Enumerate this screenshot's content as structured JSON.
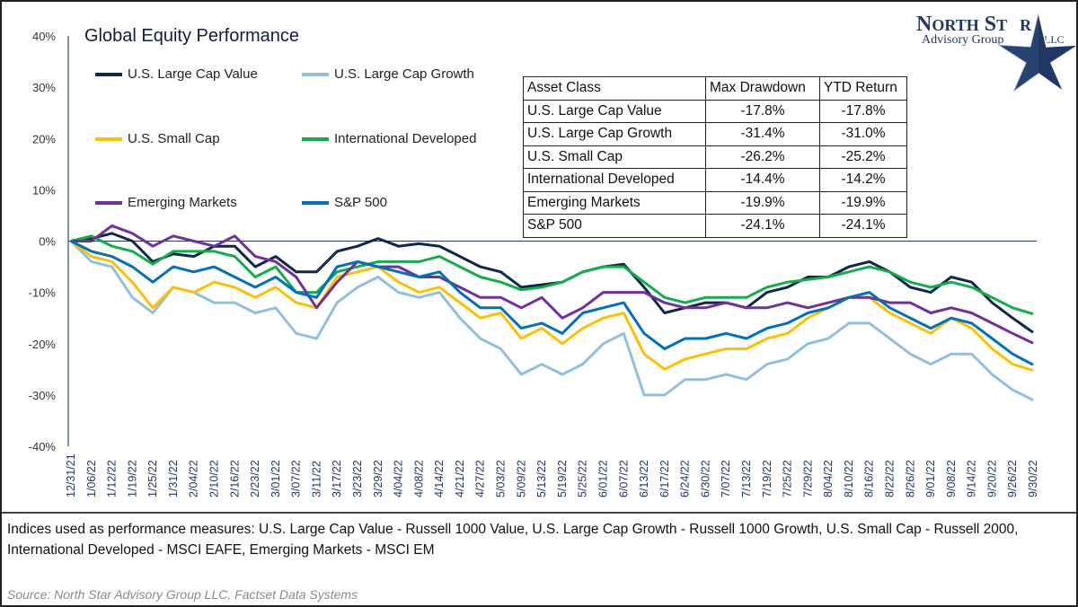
{
  "logo": {
    "line1": "NORTH STAR",
    "line2": "Advisory Group",
    "line3": "LLC"
  },
  "chart_data": {
    "type": "line",
    "title": "Global Equity Performance",
    "xlabel": "",
    "ylabel": "",
    "ylim": [
      -40,
      40
    ],
    "yticks": [
      "40%",
      "30%",
      "20%",
      "10%",
      "0%",
      "-10%",
      "-20%",
      "-30%",
      "-40%"
    ],
    "ytick_values": [
      40,
      30,
      20,
      10,
      0,
      -10,
      -20,
      -30,
      -40
    ],
    "x": [
      "12/31/21",
      "1/06/22",
      "1/12/22",
      "1/19/22",
      "1/25/22",
      "1/31/22",
      "2/04/22",
      "2/10/22",
      "2/16/22",
      "2/23/22",
      "3/01/22",
      "3/07/22",
      "3/11/22",
      "3/17/22",
      "3/23/22",
      "3/29/22",
      "4/04/22",
      "4/08/22",
      "4/14/22",
      "4/21/22",
      "4/27/22",
      "5/03/22",
      "5/09/22",
      "5/13/22",
      "5/19/22",
      "5/25/22",
      "6/01/22",
      "6/07/22",
      "6/13/22",
      "6/17/22",
      "6/24/22",
      "6/30/22",
      "7/07/22",
      "7/13/22",
      "7/19/22",
      "7/25/22",
      "7/29/22",
      "8/04/22",
      "8/10/22",
      "8/16/22",
      "8/22/22",
      "8/26/22",
      "9/01/22",
      "9/08/22",
      "9/14/22",
      "9/20/22",
      "9/26/22",
      "9/30/22"
    ],
    "grid": false,
    "legend_placement": "top-left",
    "series": [
      {
        "name": "U.S. Large Cap Value",
        "color": "#0f2748",
        "values": [
          0,
          0.5,
          1.5,
          0,
          -4,
          -2.5,
          -3,
          -1,
          -1,
          -5,
          -3,
          -6,
          -6,
          -2,
          -1,
          0.5,
          -1,
          -0.5,
          -1,
          -3,
          -5,
          -6,
          -9,
          -8.5,
          -8,
          -6,
          -5,
          -4.5,
          -9,
          -14,
          -13,
          -12,
          -12,
          -13,
          -10,
          -9,
          -7,
          -7,
          -5,
          -4,
          -6,
          -9,
          -10,
          -7,
          -8,
          -12,
          -15,
          -17.8
        ]
      },
      {
        "name": "U.S. Large Cap Growth",
        "color": "#8fc1df",
        "values": [
          0,
          -4,
          -5,
          -11,
          -14,
          -9,
          -10,
          -12,
          -12,
          -14,
          -13,
          -18,
          -19,
          -12,
          -9,
          -7,
          -10,
          -11,
          -10,
          -15,
          -19,
          -21,
          -26,
          -24,
          -26,
          -24,
          -20,
          -18,
          -30,
          -30,
          -27,
          -27,
          -26,
          -27,
          -24,
          -23,
          -20,
          -19,
          -16,
          -16,
          -19,
          -22,
          -24,
          -22,
          -22,
          -26,
          -29,
          -31
        ]
      },
      {
        "name": "U.S. Small Cap",
        "color": "#ffc000",
        "values": [
          0,
          -3,
          -4,
          -8,
          -13,
          -9,
          -10,
          -8,
          -9,
          -11,
          -9,
          -12,
          -13,
          -7,
          -6,
          -5,
          -8,
          -10,
          -9,
          -12,
          -15,
          -14,
          -19,
          -17,
          -20,
          -17,
          -15,
          -14,
          -22,
          -25,
          -23,
          -22,
          -21,
          -21,
          -19,
          -18,
          -15,
          -13,
          -11,
          -11,
          -14,
          -16,
          -18,
          -15,
          -17,
          -21,
          -24,
          -25.2
        ]
      },
      {
        "name": "International Developed",
        "color": "#0fb04a",
        "values": [
          0,
          1,
          -1,
          -2,
          -4.5,
          -2,
          -2,
          -2,
          -3,
          -7,
          -5,
          -10,
          -10,
          -6,
          -5,
          -4,
          -4,
          -4,
          -3,
          -5,
          -7,
          -8,
          -9.5,
          -9,
          -8,
          -6,
          -5,
          -5,
          -8,
          -11,
          -12,
          -11,
          -11,
          -11,
          -9,
          -8,
          -7.5,
          -7,
          -6,
          -5,
          -6,
          -8,
          -9,
          -8,
          -9,
          -11,
          -13,
          -14.2
        ]
      },
      {
        "name": "Emerging Markets",
        "color": "#7030a0",
        "values": [
          0,
          0,
          3,
          1.5,
          -1,
          1,
          0,
          -1,
          1,
          -3,
          -4,
          -7,
          -13,
          -8,
          -4,
          -5,
          -5,
          -7,
          -7,
          -9,
          -11,
          -11,
          -13,
          -11,
          -15,
          -13,
          -10,
          -10,
          -10,
          -12,
          -13,
          -13,
          -12,
          -13,
          -13,
          -12,
          -13,
          -12,
          -11,
          -11,
          -12,
          -12,
          -14,
          -13,
          -14,
          -16,
          -18,
          -19.9
        ]
      },
      {
        "name": "S&P 500",
        "color": "#0070c0",
        "values": [
          0,
          -2,
          -3,
          -5,
          -8,
          -5,
          -6,
          -5,
          -7,
          -9,
          -7,
          -10,
          -11,
          -5,
          -4,
          -5,
          -6,
          -7,
          -6,
          -10,
          -13,
          -13,
          -17,
          -16,
          -18,
          -14,
          -13,
          -12,
          -18,
          -21,
          -19,
          -19,
          -18,
          -19,
          -17,
          -16,
          -14,
          -13,
          -11,
          -10,
          -13,
          -15,
          -17,
          -15,
          -16,
          -19,
          -22,
          -24.1
        ]
      }
    ]
  },
  "table": {
    "headers": [
      "Asset Class",
      "Max Drawdown",
      "YTD Return"
    ],
    "rows": [
      [
        "U.S. Large Cap Value",
        "-17.8%",
        "-17.8%"
      ],
      [
        "U.S. Large Cap Growth",
        "-31.4%",
        "-31.0%"
      ],
      [
        "U.S. Small Cap",
        "-26.2%",
        "-25.2%"
      ],
      [
        "International Developed",
        "-14.4%",
        "-14.2%"
      ],
      [
        "Emerging Markets",
        "-19.9%",
        "-19.9%"
      ],
      [
        "S&P 500",
        "-24.1%",
        "-24.1%"
      ]
    ]
  },
  "footnote": "Indices used as performance measures: U.S. Large Cap Value - Russell 1000 Value, U.S. Large Cap Growth - Russell 1000 Growth, U.S. Small Cap - Russell 2000, International Developed - MSCI EAFE, Emerging Markets - MSCI EM",
  "source": "Source: North Star Advisory Group LLC, Factset Data Systems"
}
